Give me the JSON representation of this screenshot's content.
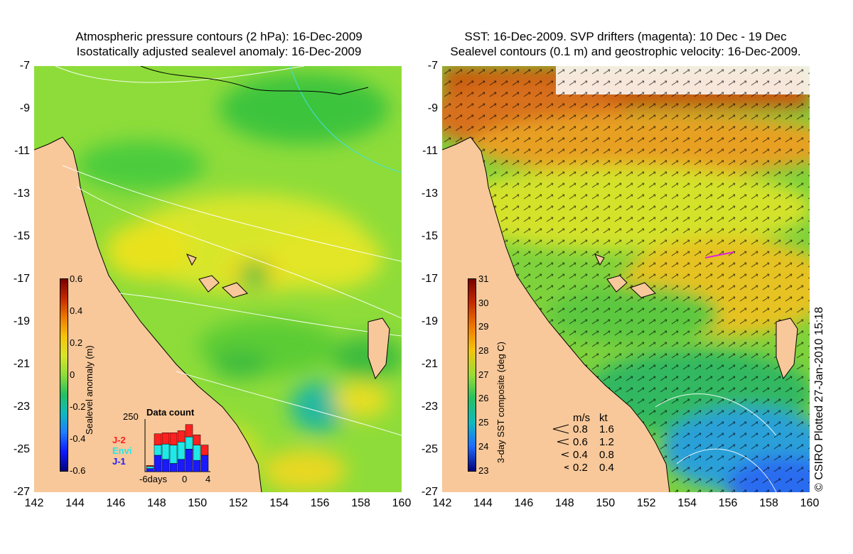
{
  "left_panel": {
    "title_line1": "Atmospheric pressure contours (2 hPa): 16-Dec-2009",
    "title_line2": "Isostatically adjusted sealevel anomaly: 16-Dec-2009",
    "colorbar": {
      "label": "Sealevel anomaly (m)",
      "ticks": [
        "0.6",
        "0.4",
        "0.2",
        "0",
        "-0.2",
        "-0.4",
        "-0.6"
      ],
      "range": [
        -0.6,
        0.6
      ]
    },
    "data_count": {
      "title": "Data count",
      "ymax_label": "250",
      "x_labels": [
        "-6days",
        "0",
        "4"
      ],
      "series": [
        {
          "name": "J-2",
          "color": "#ff2020"
        },
        {
          "name": "Envi",
          "color": "#20e8e8"
        },
        {
          "name": "J-1",
          "color": "#1a1aff"
        }
      ],
      "stacks": [
        [
          5,
          10,
          15
        ],
        [
          55,
          50,
          80
        ],
        [
          55,
          75,
          60
        ],
        [
          60,
          90,
          40
        ],
        [
          55,
          85,
          60
        ],
        [
          60,
          60,
          110
        ],
        [
          50,
          75,
          55
        ],
        [
          50,
          0,
          80
        ]
      ]
    }
  },
  "right_panel": {
    "title_line1": "SST: 16-Dec-2009. SVP drifters (magenta): 10 Dec - 19 Dec",
    "title_line2": "Sealevel contours (0.1 m) and geostrophic velocity: 16-Dec-2009.",
    "colorbar": {
      "label": "3-day SST composite (deg C)",
      "ticks": [
        "31",
        "30",
        "29",
        "28",
        "27",
        "26",
        "25",
        "24",
        "23"
      ],
      "range": [
        23,
        31
      ]
    },
    "velocity_legend": {
      "header_ms": "m/s",
      "header_kt": "kt",
      "rows": [
        {
          "ms": "0.8",
          "kt": "1.6"
        },
        {
          "ms": "0.6",
          "kt": "1.2"
        },
        {
          "ms": "0.4",
          "kt": "0.8"
        },
        {
          "ms": "0.2",
          "kt": "0.4"
        }
      ]
    }
  },
  "axes": {
    "x_ticks": [
      "142",
      "144",
      "146",
      "148",
      "150",
      "152",
      "154",
      "156",
      "158",
      "160"
    ],
    "y_ticks": [
      "-7",
      "-9",
      "-11",
      "-13",
      "-15",
      "-17",
      "-19",
      "-21",
      "-23",
      "-25",
      "-27"
    ],
    "lon_range": [
      142,
      160
    ],
    "lat_range": [
      -27,
      -7
    ]
  },
  "credit": "© CSIRO Plotted 27-Jan-2010 15:18",
  "colors": {
    "land": "#f8c89a",
    "ocean_left": "#8edc3a",
    "ocean_right": "#7ed23c"
  }
}
